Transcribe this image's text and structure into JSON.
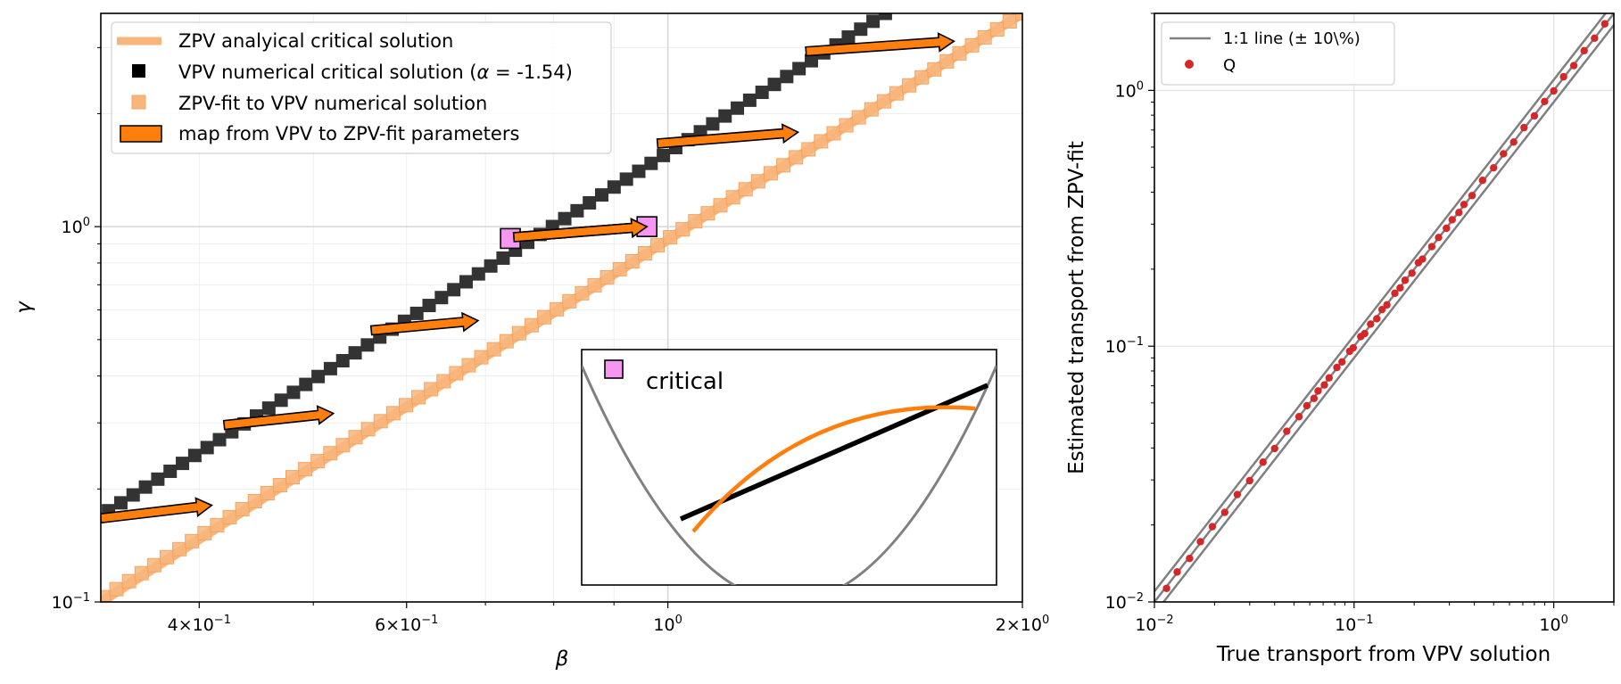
{
  "chart_data": [
    {
      "type": "scatter",
      "xlabel": "β",
      "ylabel": "γ",
      "xscale": "log",
      "yscale": "log",
      "xlim": [
        0.33,
        2.0
      ],
      "ylim": [
        0.1,
        3.7
      ],
      "grid": true,
      "legend_position": "upper-left",
      "x_ticks": [
        {
          "value": 0.4,
          "base": "4×10",
          "exp": "−1"
        },
        {
          "value": 0.6,
          "base": "6×10",
          "exp": "−1"
        },
        {
          "value": 1.0,
          "base": "10",
          "exp": "0"
        },
        {
          "value": 2.0,
          "base": "2×10",
          "exp": "0"
        }
      ],
      "y_ticks": [
        {
          "value": 0.1,
          "base": "10",
          "exp": "−1"
        },
        {
          "value": 1.0,
          "base": "10",
          "exp": "0"
        }
      ],
      "legend": [
        {
          "label": "ZPV analyical critical solution",
          "color": "#f9b67c",
          "marker": "thick-line"
        },
        {
          "label": "VPV numerical critical solution (α = -1.54)",
          "color": "#000000",
          "marker": "square"
        },
        {
          "label": "ZPV-fit to VPV numerical solution",
          "color": "#f9b67c",
          "marker": "square"
        },
        {
          "label": "map from VPV to ZPV-fit parameters",
          "color": "#ff7f0e",
          "marker": "arrow-patch"
        }
      ],
      "series": [
        {
          "name": "ZPV analyical critical solution",
          "kind": "line",
          "color": "#f9b67c",
          "x": [
            0.33,
            2.0
          ],
          "y": [
            0.1,
            3.7
          ]
        },
        {
          "name": "VPV numerical critical solution (α = -1.54)",
          "kind": "markers",
          "color": "#333333",
          "x_start": 0.335,
          "x_end": 1.53,
          "count": 64,
          "y_at_start": 0.175,
          "y_at_end": 3.7
        },
        {
          "name": "ZPV-fit to VPV numerical solution",
          "kind": "markers",
          "color": "#f9b67c",
          "x_start": 0.332,
          "x_end": 2.0,
          "count": 74,
          "y_at_start": 0.103,
          "y_at_end": 3.7
        }
      ],
      "arrows": [
        {
          "from": [
            0.33,
            0.167
          ],
          "to": [
            0.41,
            0.181
          ]
        },
        {
          "from": [
            0.42,
            0.296
          ],
          "to": [
            0.52,
            0.318
          ]
        },
        {
          "from": [
            0.56,
            0.529
          ],
          "to": [
            0.69,
            0.562
          ]
        },
        {
          "from": [
            0.74,
            0.937
          ],
          "to": [
            0.96,
            1.0
          ]
        },
        {
          "from": [
            0.98,
            1.665
          ],
          "to": [
            1.29,
            1.785
          ]
        },
        {
          "from": [
            1.31,
            2.93
          ],
          "to": [
            1.75,
            3.12
          ]
        }
      ],
      "highlight": {
        "label": "critical",
        "points": [
          [
            0.735,
            0.93
          ],
          [
            0.96,
            1.0
          ]
        ],
        "color": "#f596f0"
      },
      "inset": {
        "legend_label": "critical"
      }
    },
    {
      "type": "scatter",
      "xlabel": "True transport from VPV solution",
      "ylabel": "Estimated transport from ZPV-fit",
      "xscale": "log",
      "yscale": "log",
      "xlim": [
        0.01,
        2.0
      ],
      "ylim": [
        0.01,
        2.0
      ],
      "grid": true,
      "legend_position": "upper-left",
      "x_ticks": [
        {
          "value": 0.01,
          "base": "10",
          "exp": "−2"
        },
        {
          "value": 0.1,
          "base": "10",
          "exp": "−1"
        },
        {
          "value": 1.0,
          "base": "10",
          "exp": "0"
        }
      ],
      "y_ticks": [
        {
          "value": 0.01,
          "base": "10",
          "exp": "−2"
        },
        {
          "value": 0.1,
          "base": "10",
          "exp": "−1"
        },
        {
          "value": 1.0,
          "base": "10",
          "exp": "0"
        }
      ],
      "legend": [
        {
          "label": "1:1 line (± 10\\%)",
          "color": "#808080",
          "marker": "line"
        },
        {
          "label": "Q",
          "color": "#d62728",
          "marker": "dot"
        }
      ],
      "lines": [
        {
          "name": "1:1",
          "factor": 1.0
        },
        {
          "name": "+10%",
          "factor": 1.1
        },
        {
          "name": "-10%",
          "factor": 0.9
        }
      ],
      "series": [
        {
          "name": "Q",
          "color": "#d62728",
          "x": [
            0.0115,
            0.013,
            0.015,
            0.017,
            0.0195,
            0.0225,
            0.026,
            0.03,
            0.035,
            0.04,
            0.046,
            0.053,
            0.058,
            0.063,
            0.066,
            0.071,
            0.075,
            0.082,
            0.087,
            0.095,
            0.099,
            0.108,
            0.113,
            0.121,
            0.13,
            0.138,
            0.146,
            0.16,
            0.17,
            0.18,
            0.195,
            0.21,
            0.22,
            0.245,
            0.265,
            0.29,
            0.31,
            0.335,
            0.355,
            0.39,
            0.44,
            0.5,
            0.56,
            0.63,
            0.71,
            0.8,
            0.9,
            1.0,
            1.12,
            1.26,
            1.42,
            1.6,
            1.8
          ],
          "y": [
            0.0113,
            0.0131,
            0.0148,
            0.0172,
            0.0197,
            0.0224,
            0.0263,
            0.0298,
            0.0352,
            0.0398,
            0.0465,
            0.053,
            0.0585,
            0.0625,
            0.0668,
            0.0705,
            0.0752,
            0.0825,
            0.0868,
            0.0955,
            0.0985,
            0.109,
            0.112,
            0.122,
            0.128,
            0.139,
            0.145,
            0.161,
            0.169,
            0.181,
            0.193,
            0.212,
            0.219,
            0.245,
            0.266,
            0.289,
            0.312,
            0.333,
            0.358,
            0.388,
            0.445,
            0.498,
            0.565,
            0.628,
            0.715,
            0.795,
            0.905,
            0.995,
            1.13,
            1.25,
            1.43,
            1.6,
            1.82
          ]
        }
      ]
    }
  ]
}
